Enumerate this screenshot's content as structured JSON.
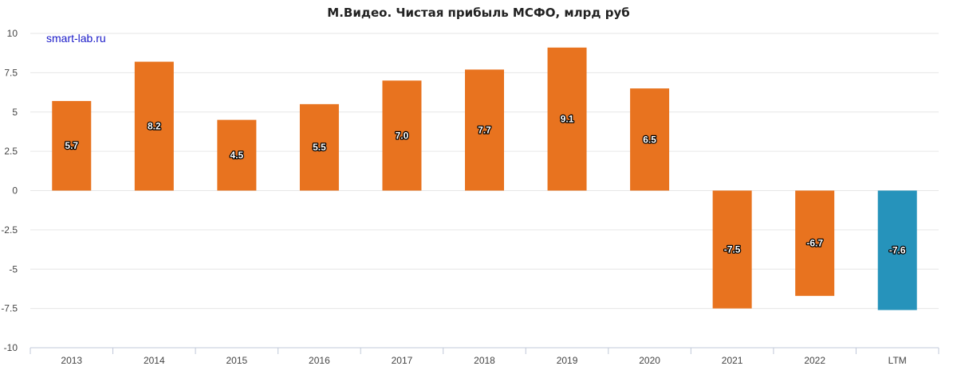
{
  "chart_data": {
    "type": "bar",
    "title": "М.Видео. Чистая прибыль МСФО, млрд руб",
    "watermark": "smart-lab.ru",
    "categories": [
      "2013",
      "2014",
      "2015",
      "2016",
      "2017",
      "2018",
      "2019",
      "2020",
      "2021",
      "2022",
      "LTM"
    ],
    "values": [
      5.7,
      8.2,
      4.5,
      5.5,
      7.0,
      7.7,
      9.1,
      6.5,
      -7.5,
      -6.7,
      -7.6
    ],
    "value_labels": [
      "5.7",
      "8.2",
      "4.5",
      "5.5",
      "7.0",
      "7.7",
      "9.1",
      "6.5",
      "-7.5",
      "-6.7",
      "-7.6"
    ],
    "ylim": [
      -10,
      10
    ],
    "yticks": [
      10,
      7.5,
      5,
      2.5,
      0,
      -2.5,
      -5,
      -7.5,
      -10
    ],
    "ytick_labels": [
      "10",
      "7.5",
      "5",
      "2.5",
      "0",
      "-2.5",
      "-5",
      "-7.5",
      "-10"
    ],
    "grid": true,
    "colors": {
      "bar": "#e8731f",
      "highlight": "#2693bb",
      "highlight_category": "LTM"
    }
  }
}
